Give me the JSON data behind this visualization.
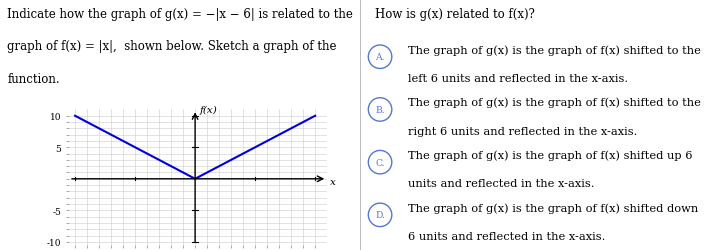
{
  "left_title_line1": "Indicate how the graph of g(x) = −|x − 6| is related to the",
  "left_title_line2": "graph of f(x) = |x|,  shown below. Sketch a graph of the",
  "left_title_line3": "function.",
  "right_title": "How is g(x) related to f(x)?",
  "options": [
    {
      "label": "A.",
      "text_line1": "The graph of g(x) is the graph of f(x) shifted to the",
      "text_line2": "left 6 units and reflected in the x-axis."
    },
    {
      "label": "B.",
      "text_line1": "The graph of g(x) is the graph of f(x) shifted to the",
      "text_line2": "right 6 units and reflected in the x-axis."
    },
    {
      "label": "C.",
      "text_line1": "The graph of g(x) is the graph of f(x) shifted up 6",
      "text_line2": "units and reflected in the x-axis."
    },
    {
      "label": "D.",
      "text_line1": "The graph of g(x) is the graph of f(x) shifted down",
      "text_line2": "6 units and reflected in the x-axis."
    }
  ],
  "graph_xlim": [
    -10.5,
    11
  ],
  "graph_ylim": [
    -10.5,
    11
  ],
  "graph_xticks": [
    -10,
    -5,
    5,
    10
  ],
  "graph_yticks": [
    -10,
    -5,
    5,
    10
  ],
  "curve_color": "#0000dd",
  "grid_color": "#cccccc",
  "axis_color": "#000000",
  "background_color": "#ffffff",
  "text_color": "#000000",
  "option_circle_color": "#5577cc",
  "ylabel": "f(x)",
  "xlabel": "x",
  "font_size_text": 8.5,
  "font_size_option": 8.2,
  "font_size_tick": 6.5
}
